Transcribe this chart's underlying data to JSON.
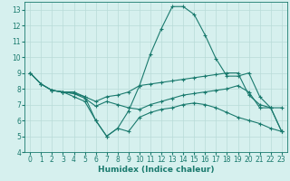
{
  "xlabel": "Humidex (Indice chaleur)",
  "bg_color": "#d6f0ee",
  "grid_color": "#b8dbd8",
  "line_color": "#1a7a6e",
  "xlim": [
    -0.5,
    23.5
  ],
  "ylim": [
    4,
    13.5
  ],
  "xticks": [
    0,
    1,
    2,
    3,
    4,
    5,
    6,
    7,
    8,
    9,
    10,
    11,
    12,
    13,
    14,
    15,
    16,
    17,
    18,
    19,
    20,
    21,
    22,
    23
  ],
  "yticks": [
    4,
    5,
    6,
    7,
    8,
    9,
    10,
    11,
    12,
    13
  ],
  "line1_x": [
    0,
    1,
    2,
    3,
    4,
    5,
    6,
    7,
    8,
    9,
    10,
    11,
    12,
    13,
    14,
    15,
    16,
    17,
    18,
    19,
    20,
    21,
    22,
    23
  ],
  "line1_y": [
    9.0,
    8.3,
    7.9,
    7.8,
    7.8,
    7.5,
    6.0,
    5.0,
    5.5,
    6.6,
    8.2,
    10.2,
    11.8,
    13.2,
    13.2,
    12.7,
    11.4,
    9.9,
    8.8,
    8.8,
    9.0,
    7.5,
    6.8,
    6.8
  ],
  "line2_x": [
    0,
    1,
    2,
    3,
    4,
    5,
    6,
    7,
    8,
    9,
    10,
    11,
    12,
    13,
    14,
    15,
    16,
    17,
    18,
    19,
    20,
    21,
    22,
    23
  ],
  "line2_y": [
    9.0,
    8.3,
    7.9,
    7.8,
    7.7,
    7.5,
    7.2,
    7.5,
    7.6,
    7.8,
    8.2,
    8.3,
    8.4,
    8.5,
    8.6,
    8.7,
    8.8,
    8.9,
    9.0,
    9.0,
    7.6,
    7.0,
    6.8,
    5.3
  ],
  "line3_x": [
    0,
    1,
    2,
    3,
    4,
    5,
    6,
    7,
    8,
    9,
    10,
    11,
    12,
    13,
    14,
    15,
    16,
    17,
    18,
    19,
    20,
    21,
    22,
    23
  ],
  "line3_y": [
    9.0,
    8.3,
    7.9,
    7.8,
    7.7,
    7.4,
    6.9,
    7.2,
    7.0,
    6.8,
    6.7,
    7.0,
    7.2,
    7.4,
    7.6,
    7.7,
    7.8,
    7.9,
    8.0,
    8.2,
    7.8,
    6.8,
    6.8,
    5.3
  ],
  "line4_x": [
    2,
    3,
    4,
    5,
    6,
    7,
    8,
    9,
    10,
    11,
    12,
    13,
    14,
    15,
    16,
    17,
    18,
    19,
    20,
    21,
    22,
    23
  ],
  "line4_y": [
    7.9,
    7.8,
    7.5,
    7.2,
    6.0,
    5.0,
    5.5,
    5.3,
    6.2,
    6.5,
    6.7,
    6.8,
    7.0,
    7.1,
    7.0,
    6.8,
    6.5,
    6.2,
    6.0,
    5.8,
    5.5,
    5.3
  ]
}
